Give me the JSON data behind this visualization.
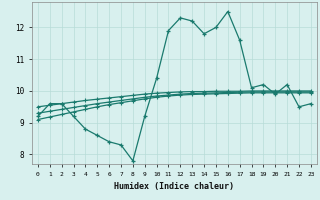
{
  "title": "",
  "xlabel": "Humidex (Indice chaleur)",
  "bg_color": "#d8f0ee",
  "line_color": "#1a7a6e",
  "grid_color": "#b8dcd8",
  "x": [
    0,
    1,
    2,
    3,
    4,
    5,
    6,
    7,
    8,
    9,
    10,
    11,
    12,
    13,
    14,
    15,
    16,
    17,
    18,
    19,
    20,
    21,
    22,
    23
  ],
  "main_line": [
    9.2,
    9.6,
    9.6,
    9.2,
    8.8,
    8.6,
    8.4,
    8.3,
    7.8,
    9.2,
    10.4,
    11.9,
    12.3,
    12.2,
    11.8,
    12.0,
    12.5,
    11.6,
    10.1,
    10.2,
    9.9,
    10.2,
    9.5,
    9.6
  ],
  "ref_line1": [
    9.5,
    9.55,
    9.6,
    9.65,
    9.7,
    9.74,
    9.78,
    9.82,
    9.86,
    9.9,
    9.93,
    9.95,
    9.97,
    9.98,
    9.98,
    9.99,
    9.99,
    9.99,
    10.0,
    10.0,
    10.0,
    10.0,
    10.0,
    10.0
  ],
  "ref_line2": [
    9.3,
    9.36,
    9.42,
    9.48,
    9.54,
    9.6,
    9.65,
    9.7,
    9.75,
    9.8,
    9.84,
    9.87,
    9.9,
    9.92,
    9.93,
    9.94,
    9.95,
    9.96,
    9.97,
    9.97,
    9.97,
    9.97,
    9.97,
    9.97
  ],
  "ref_line3": [
    9.1,
    9.18,
    9.26,
    9.34,
    9.42,
    9.5,
    9.57,
    9.63,
    9.69,
    9.75,
    9.8,
    9.84,
    9.87,
    9.89,
    9.9,
    9.91,
    9.92,
    9.93,
    9.94,
    9.94,
    9.94,
    9.94,
    9.94,
    9.94
  ],
  "ylim": [
    7.7,
    12.8
  ],
  "xlim": [
    -0.5,
    23.5
  ],
  "yticks": [
    8,
    9,
    10,
    11,
    12
  ],
  "xticks": [
    0,
    1,
    2,
    3,
    4,
    5,
    6,
    7,
    8,
    9,
    10,
    11,
    12,
    13,
    14,
    15,
    16,
    17,
    18,
    19,
    20,
    21,
    22,
    23
  ]
}
